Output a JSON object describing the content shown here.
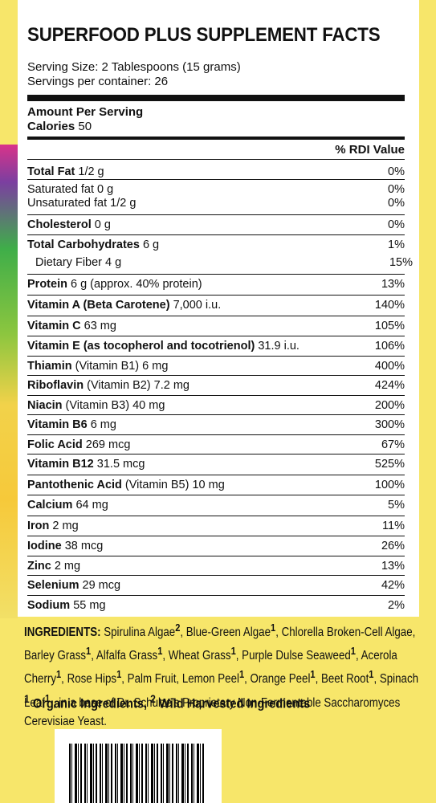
{
  "title": "SUPERFOOD PLUS SUPPLEMENT FACTS",
  "serving_size": "Serving Size: 2 Tablespoons (15 grams)",
  "servings_per_container": "Servings per container: 26",
  "amount_per_serving": "Amount Per Serving",
  "calories_label": "Calories",
  "calories_value": "50",
  "rdi_header": "% RDI Value",
  "rows": [
    {
      "name": "Total Fat",
      "detail": "1/2 g",
      "rdi": "0%"
    },
    {
      "name": "",
      "detail": "Saturated fat 0 g",
      "rdi": "0%"
    },
    {
      "name": "",
      "detail": "Unsaturated fat 1/2 g",
      "rdi": "0%"
    },
    {
      "name": "Cholesterol",
      "detail": "0 g",
      "rdi": "0%"
    },
    {
      "name": "Total Carbohydrates",
      "detail": "6 g",
      "rdi": "1%"
    },
    {
      "name": "",
      "detail": "Dietary Fiber 4 g",
      "rdi": "15%"
    },
    {
      "name": "Protein",
      "detail": "6 g  (approx. 40% protein)",
      "rdi": "13%"
    },
    {
      "name": "Vitamin A (Beta Carotene)",
      "detail": "7,000 i.u.",
      "rdi": "140%"
    },
    {
      "name": "Vitamin C",
      "detail": "63 mg",
      "rdi": "105%"
    },
    {
      "name": "Vitamin E (as tocopherol and tocotrienol)",
      "detail": "31.9 i.u.",
      "rdi": "106%"
    },
    {
      "name": "Thiamin",
      "detail": "(Vitamin B1) 6 mg",
      "rdi": "400%"
    },
    {
      "name": "Riboflavin",
      "detail": "(Vitamin B2) 7.2 mg",
      "rdi": "424%"
    },
    {
      "name": "Niacin",
      "detail": "(Vitamin B3) 40 mg",
      "rdi": "200%"
    },
    {
      "name": "Vitamin B6",
      "detail": "6 mg",
      "rdi": "300%"
    },
    {
      "name": "Folic Acid",
      "detail": "269 mcg",
      "rdi": "67%"
    },
    {
      "name": "Vitamin B12",
      "detail": "31.5 mcg",
      "rdi": "525%"
    },
    {
      "name": "Pantothenic Acid",
      "detail": "(Vitamin B5) 10 mg",
      "rdi": "100%"
    },
    {
      "name": "Calcium",
      "detail": "64 mg",
      "rdi": "5%"
    },
    {
      "name": "Iron",
      "detail": "2 mg",
      "rdi": "11%"
    },
    {
      "name": "Iodine",
      "detail": "38 mcg",
      "rdi": "26%"
    },
    {
      "name": "Zinc",
      "detail": "2 mg",
      "rdi": "13%"
    },
    {
      "name": "Selenium",
      "detail": "29 mcg",
      "rdi": "42%"
    },
    {
      "name": "Sodium",
      "detail": "55 mg",
      "rdi": "2%"
    }
  ],
  "ingredients_label": "INGREDIENTS:",
  "ingredients": [
    {
      "t": "Spirulina Algae",
      "s": "2"
    },
    {
      "t": ", Blue-Green Algae",
      "s": "1"
    },
    {
      "t": ", Chlorella Broken-Cell Algae, Barley Grass",
      "s": "1"
    },
    {
      "t": ", Alfalfa Grass",
      "s": "1"
    },
    {
      "t": ", Wheat Grass",
      "s": "1"
    },
    {
      "t": ", Purple Dulse Seaweed",
      "s": "1"
    },
    {
      "t": ", Acerola Cherry",
      "s": "1"
    },
    {
      "t": ", Rose Hips",
      "s": "1"
    },
    {
      "t": ", Palm Fruit, Lemon Peel",
      "s": "1"
    },
    {
      "t": ", Orange Peel",
      "s": "1"
    },
    {
      "t": ", Beet Root",
      "s": "1"
    },
    {
      "t": ", Spinach Leaf",
      "s": "1"
    },
    {
      "t": " , in a base of Dr. Schulze’s Proprietary Non-Fermentable Saccharomyces Cerevisiae Yeast.",
      "s": ""
    }
  ],
  "footnote_1_mark": "1",
  "footnote_1": " Organic Ingredients, ",
  "footnote_2_mark": "2",
  "footnote_2": " Wild Harvested Ingredients"
}
